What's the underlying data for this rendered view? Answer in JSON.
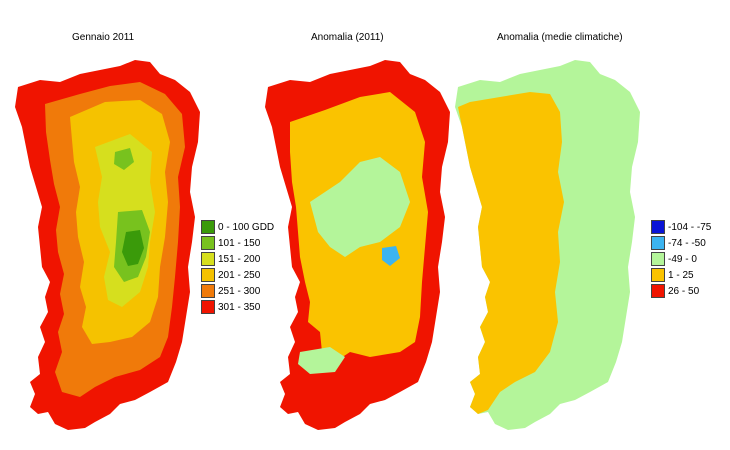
{
  "maps": [
    {
      "title": "Gennaio 2011",
      "legend": [
        {
          "label": "0 - 100 GDD",
          "color": "#3a9a0a"
        },
        {
          "label": "101 - 150",
          "color": "#78c21e"
        },
        {
          "label": "151 - 200",
          "color": "#d6df1e"
        },
        {
          "label": "201 - 250",
          "color": "#f5c200"
        },
        {
          "label": "251 - 300",
          "color": "#f07a0a"
        },
        {
          "label": "301 - 350",
          "color": "#f01400"
        }
      ]
    },
    {
      "title": "Anomalia (2011)"
    },
    {
      "title": "Anomalia (medie climatiche)",
      "legend": [
        {
          "label": "-104 - -75",
          "color": "#0a14d6"
        },
        {
          "label": "-74 - -50",
          "color": "#3cb4f0"
        },
        {
          "label": "-49 - 0",
          "color": "#b4f59a"
        },
        {
          "label": "1 - 25",
          "color": "#fac300"
        },
        {
          "label": "26 - 50",
          "color": "#f01400"
        }
      ]
    }
  ]
}
